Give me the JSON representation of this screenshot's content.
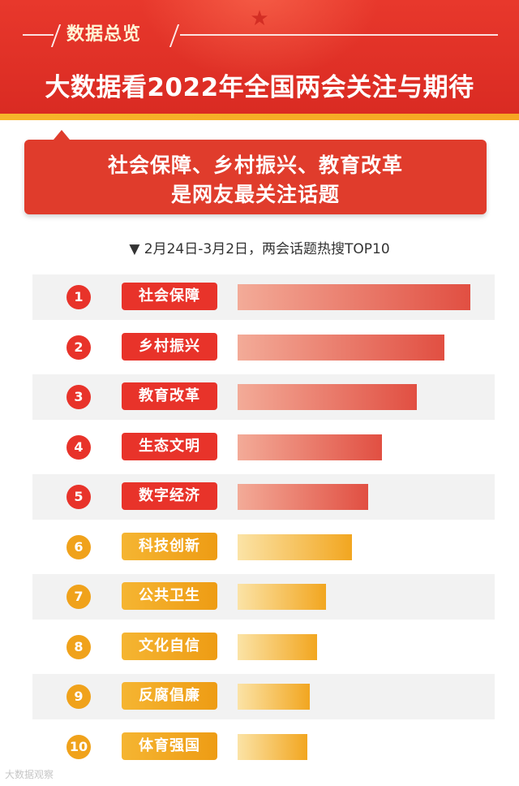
{
  "header": {
    "tag": "数据总览",
    "title": "大数据看2022年全国两会关注与期待"
  },
  "subtitle": {
    "line1": "社会保障、乡村振兴、教育改革",
    "line2": "是网友最关注话题"
  },
  "caption": "▼ 2月24日-3月2日，两会话题热搜TOP10",
  "watermark": "大数据观察",
  "colors": {
    "red": "#e8332a",
    "gold": "#f0a21b",
    "header": "#d92a22"
  },
  "chart_data": {
    "type": "bar",
    "orientation": "horizontal",
    "categories": [
      "社会保障",
      "乡村振兴",
      "教育改革",
      "生态文明",
      "数字经济",
      "科技创新",
      "公共卫生",
      "文化自信",
      "反腐倡廉",
      "体育强国"
    ],
    "ranks": [
      "1",
      "2",
      "3",
      "4",
      "5",
      "6",
      "7",
      "8",
      "9",
      "10"
    ],
    "values": [
      100,
      89,
      77,
      62,
      56,
      49,
      38,
      34,
      31,
      30
    ],
    "value_unit": "relative bar length (% of longest bar, no values printed)",
    "title": "▼ 2月24日-3月2日，两会话题热搜TOP10",
    "xlabel": "",
    "ylabel": "",
    "xlim": [
      0,
      100
    ],
    "grid": false,
    "legend": "none",
    "highlight_top": 5
  }
}
